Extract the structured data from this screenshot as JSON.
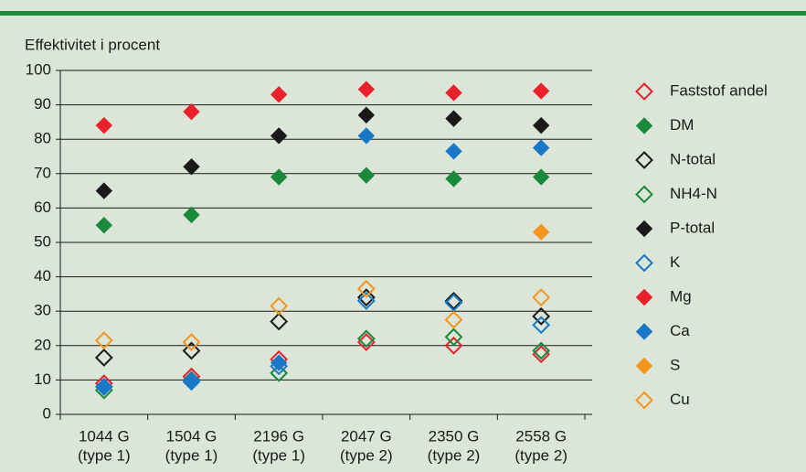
{
  "chart_data": {
    "type": "scatter",
    "y_label": "Effektivitet i procent",
    "categories": [
      [
        "1044 G",
        "(type 1)"
      ],
      [
        "1504 G",
        "(type 1)"
      ],
      [
        "2196 G",
        "(type 1)"
      ],
      [
        "2047 G",
        "(type 2)"
      ],
      [
        "2350 G",
        "(type 2)"
      ],
      [
        "2558 G",
        "(type 2)"
      ]
    ],
    "ylim": [
      0,
      100
    ],
    "yticks": [
      0,
      10,
      20,
      30,
      40,
      50,
      60,
      70,
      80,
      90,
      100
    ],
    "grid": true,
    "legend": "right",
    "series": [
      {
        "name": "Faststof andel",
        "color": "#e8212a",
        "marker": "open",
        "values": [
          9,
          11,
          16,
          21,
          20,
          17.5
        ]
      },
      {
        "name": "DM",
        "color": "#1a8a3a",
        "marker": "filled",
        "values": [
          55,
          58,
          69,
          69.5,
          68.5,
          69
        ]
      },
      {
        "name": "N-total",
        "color": "#1a1a1a",
        "marker": "open",
        "values": [
          16.5,
          18.5,
          27,
          34,
          33,
          28.5
        ]
      },
      {
        "name": "NH4-N",
        "color": "#1a8a3a",
        "marker": "open",
        "values": [
          7,
          10,
          12,
          22,
          22.5,
          18.5
        ]
      },
      {
        "name": "P-total",
        "color": "#1a1a1a",
        "marker": "filled",
        "values": [
          65,
          72,
          81,
          87,
          86,
          84
        ]
      },
      {
        "name": "K",
        "color": "#1a78c8",
        "marker": "open",
        "values": [
          8,
          9.5,
          14,
          33,
          32.5,
          26
        ]
      },
      {
        "name": "Mg",
        "color": "#e8212a",
        "marker": "filled",
        "values": [
          84,
          88,
          93,
          94.5,
          93.5,
          94
        ]
      },
      {
        "name": "Ca",
        "color": "#1a78c8",
        "marker": "filled",
        "values": [
          8,
          10,
          15,
          81,
          76.5,
          77.5
        ]
      },
      {
        "name": "S",
        "color": "#f7941d",
        "marker": "filled",
        "values": [
          null,
          null,
          null,
          null,
          null,
          53
        ]
      },
      {
        "name": "Cu",
        "color": "#f7941d",
        "marker": "open",
        "values": [
          21.5,
          21,
          31.5,
          36.5,
          27.5,
          34
        ]
      }
    ]
  }
}
